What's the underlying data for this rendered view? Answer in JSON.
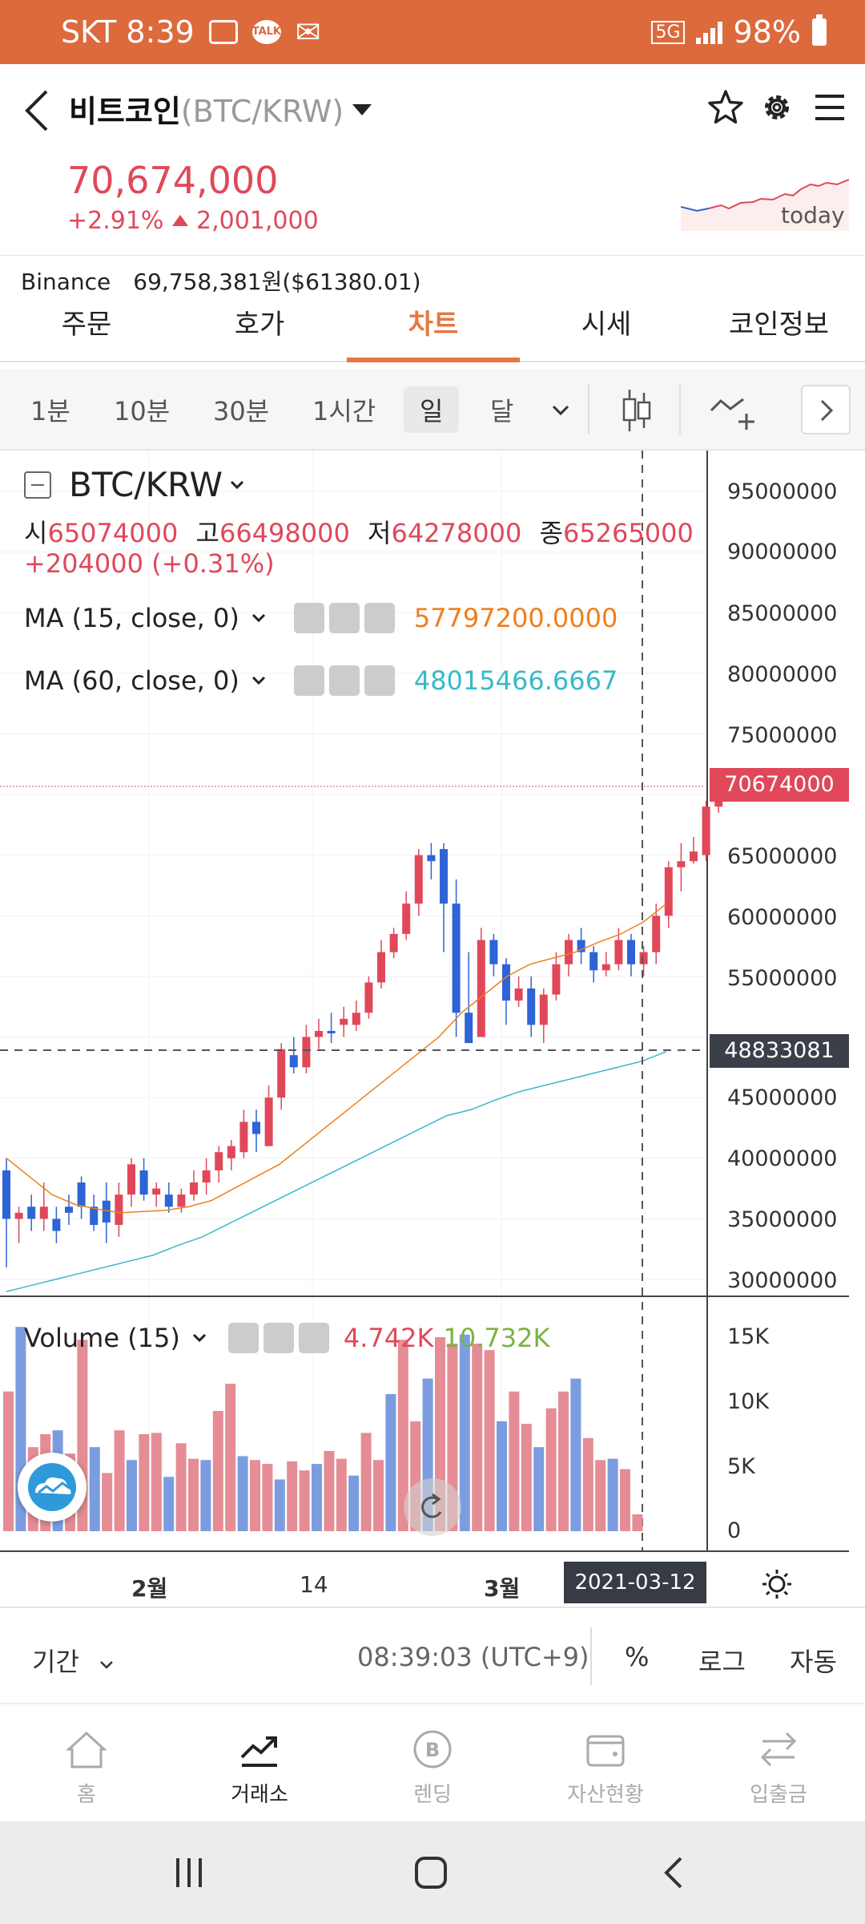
{
  "status_bar": {
    "carrier_time": "SKT 8:39",
    "network": "5G",
    "battery": "98%"
  },
  "header": {
    "coin_name": "비트코인",
    "pair": "(BTC/KRW)"
  },
  "price": {
    "current": "70,674,000",
    "change_pct": "+2.91%",
    "change_abs": "2,001,000",
    "spark_label": "today"
  },
  "binance": {
    "label": "Binance",
    "value": "69,758,381원($61380.01)"
  },
  "tabs": [
    {
      "label": "주문"
    },
    {
      "label": "호가"
    },
    {
      "label": "차트"
    },
    {
      "label": "시세"
    },
    {
      "label": "코인정보"
    }
  ],
  "intervals": [
    {
      "label": "1분"
    },
    {
      "label": "10분"
    },
    {
      "label": "30분"
    },
    {
      "label": "1시간"
    },
    {
      "label": "일"
    },
    {
      "label": "달"
    }
  ],
  "chart": {
    "symbol": "BTC/KRW",
    "ohlc": {
      "o_label": "시",
      "o": "65074000",
      "h_label": "고",
      "h": "66498000",
      "l_label": "저",
      "l": "64278000",
      "c_label": "종",
      "c": "65265000"
    },
    "ohlc_change": "+204000 (+0.31%)",
    "ma15": {
      "label": "MA (15, close, 0)",
      "value": "57797200.0000",
      "color": "#ef7f1a"
    },
    "ma60": {
      "label": "MA (60, close, 0)",
      "value": "48015466.6667",
      "color": "#38b9c9"
    },
    "y_ticks": [
      "95000000",
      "90000000",
      "85000000",
      "80000000",
      "75000000",
      "65000000",
      "60000000",
      "55000000",
      "45000000",
      "40000000",
      "35000000",
      "30000000"
    ],
    "current_price_tag": "70674000",
    "crosshair_price_tag": "48833081",
    "volume": {
      "label": "Volume (15)",
      "value1": "4.742K",
      "value2": "10.732K"
    },
    "volume_ticks": [
      "15K",
      "10K",
      "5K",
      "0"
    ],
    "x_labels": [
      "2월",
      "14",
      "3월"
    ],
    "crosshair_date": "2021-03-12",
    "colors": {
      "up": "#e0485a",
      "down": "#2d64d6",
      "accent": "#e7773f"
    }
  },
  "footer_controls": {
    "period": "기간",
    "time": "08:39:03 (UTC+9)",
    "percent": "%",
    "log": "로그",
    "auto": "자동"
  },
  "bottom_nav": [
    {
      "label": "홈"
    },
    {
      "label": "거래소"
    },
    {
      "label": "렌딩"
    },
    {
      "label": "자산현황"
    },
    {
      "label": "입출금"
    }
  ]
}
